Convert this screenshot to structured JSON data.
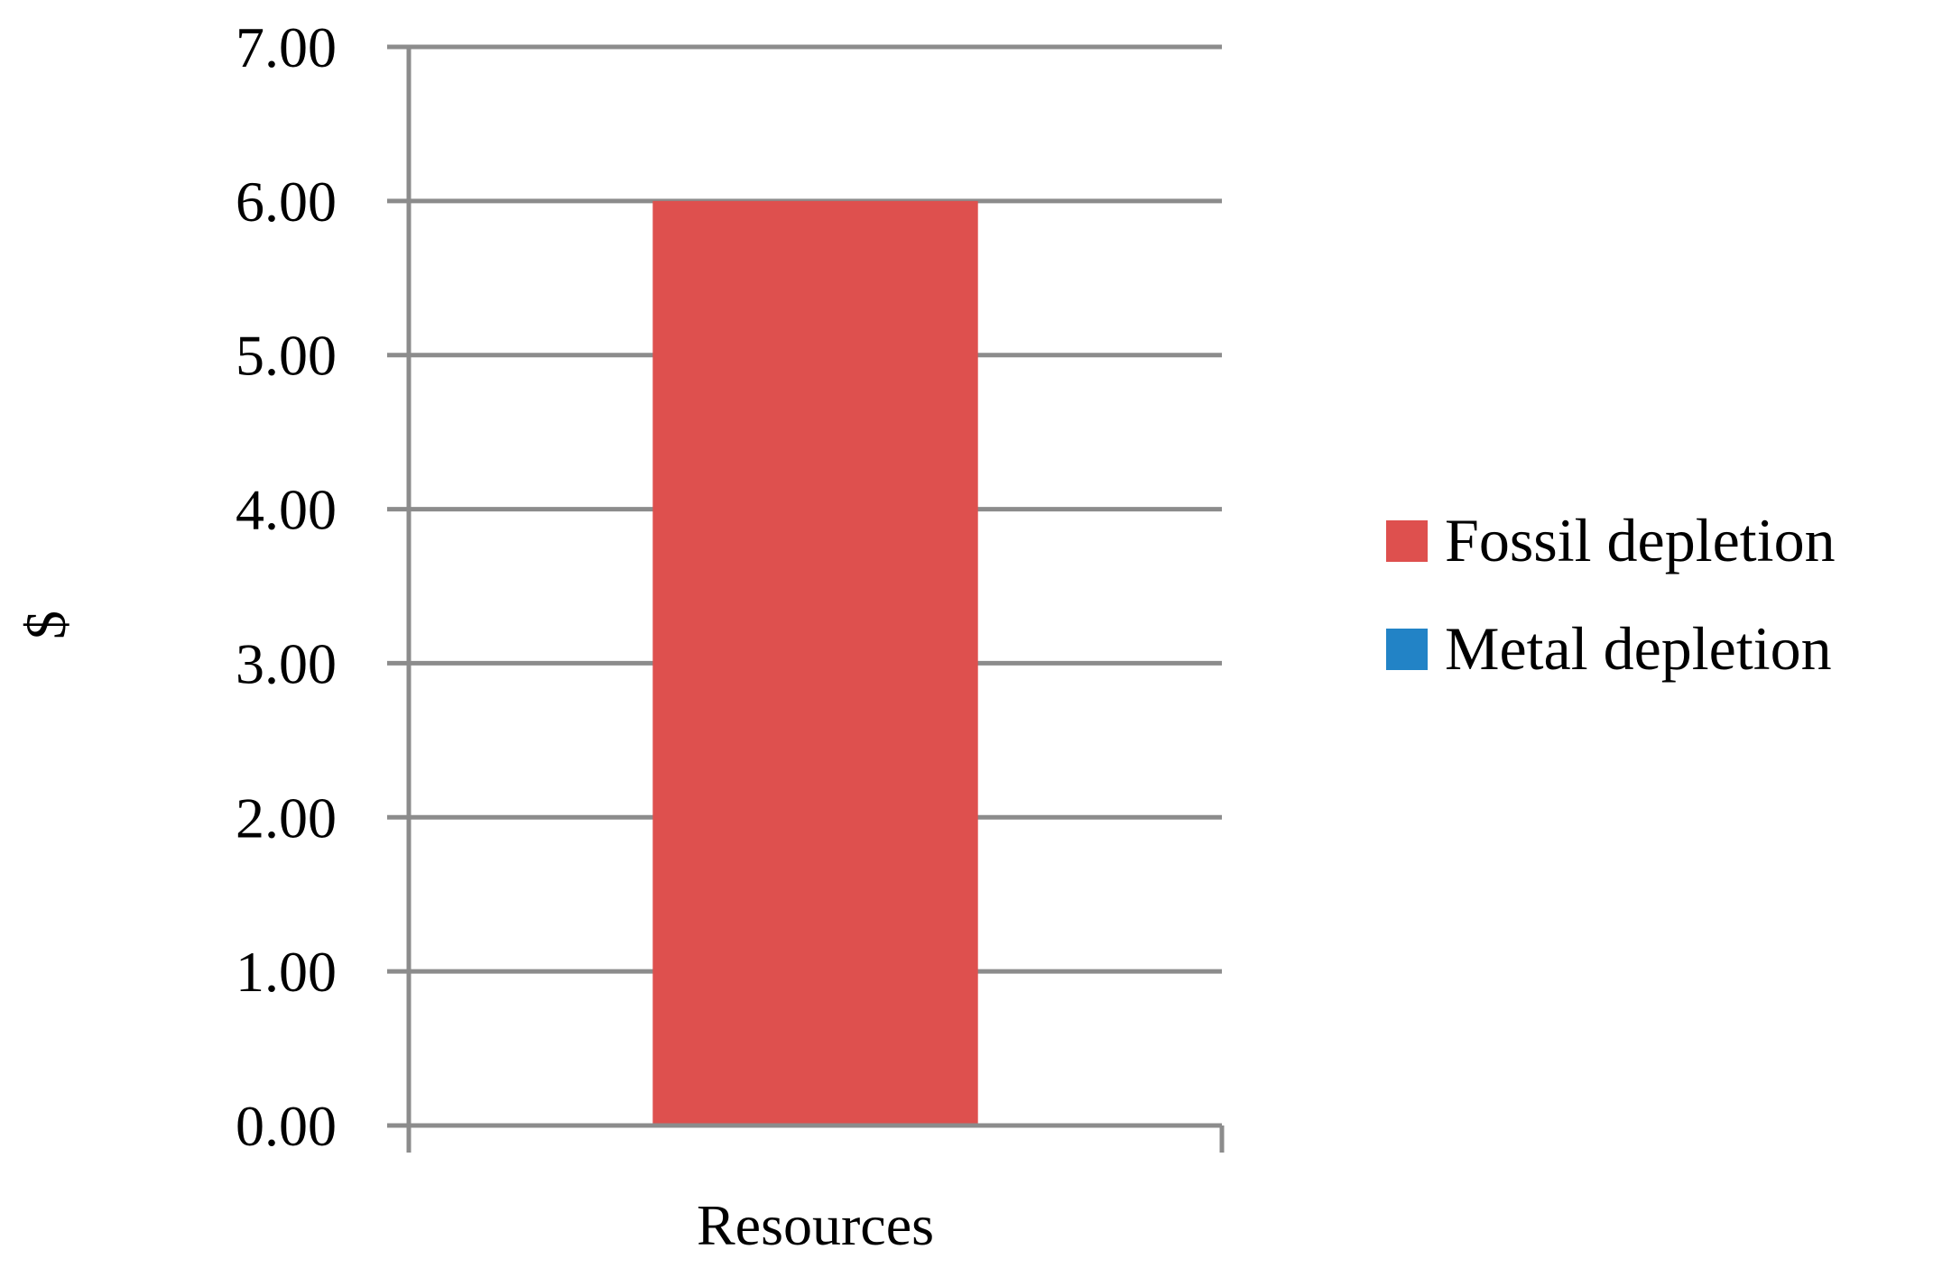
{
  "chart_data": {
    "type": "bar",
    "stacked": true,
    "categories": [
      "Resources"
    ],
    "series": [
      {
        "name": "Fossil depletion",
        "color": "#DE504E",
        "values": [
          6.0
        ]
      },
      {
        "name": "Metal depletion",
        "color": "#2283C6",
        "values": [
          0.0
        ]
      }
    ],
    "ylabel": "$",
    "xlabel": "",
    "ylim": [
      0,
      7
    ],
    "yticks": [
      "0.00",
      "1.00",
      "2.00",
      "3.00",
      "4.00",
      "5.00",
      "6.00",
      "7.00"
    ],
    "grid": true,
    "gridColor": "#8C8C8C",
    "legend_position": "right"
  }
}
